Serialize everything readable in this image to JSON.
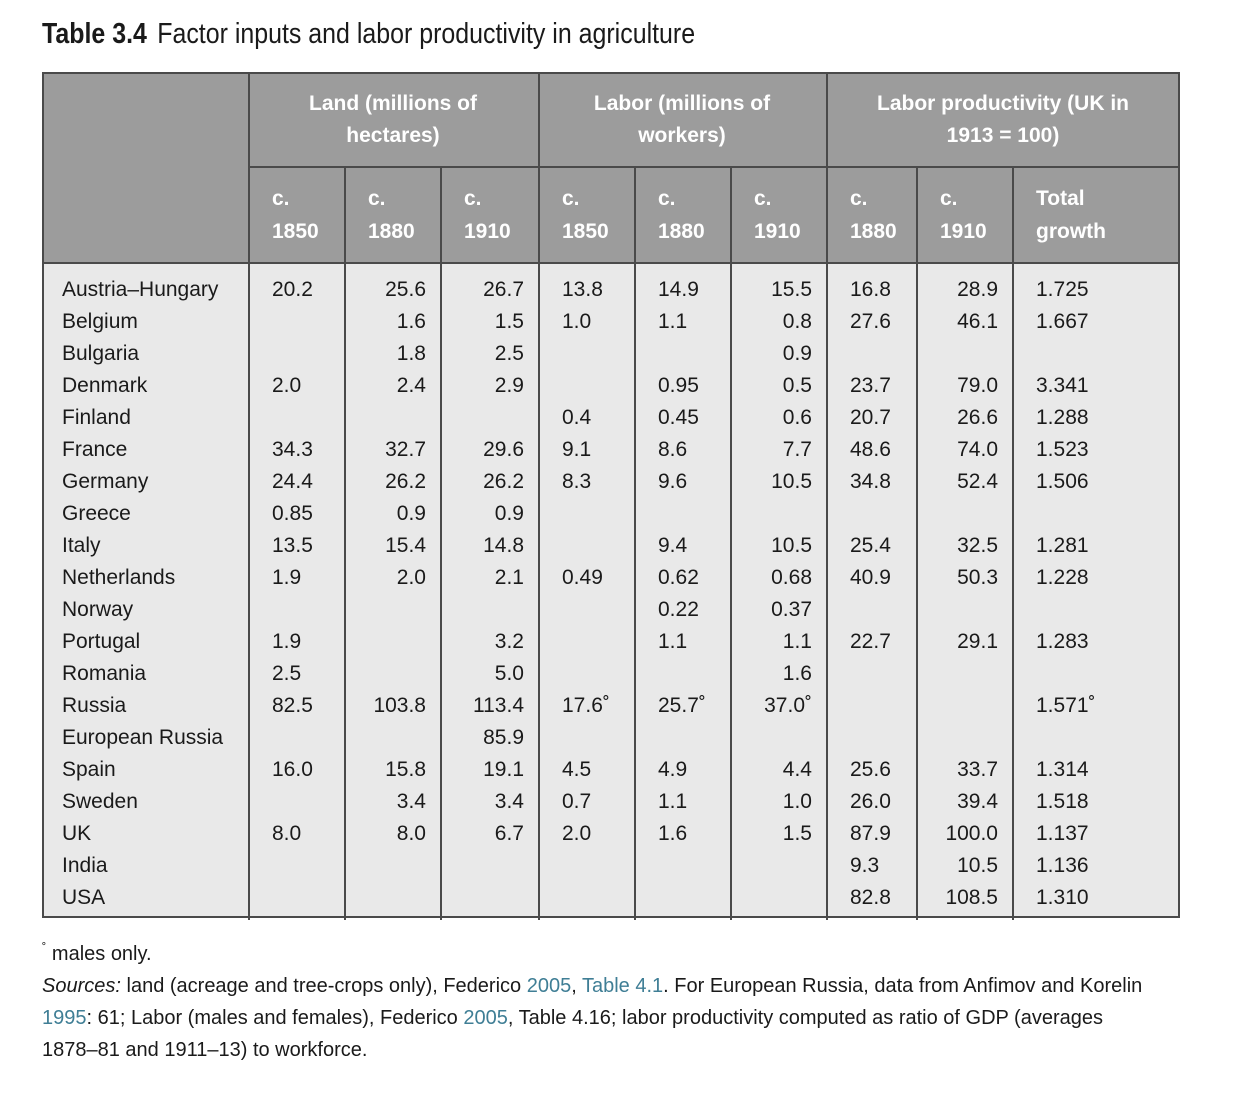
{
  "title": {
    "number": "Table 3.4",
    "text": "Factor inputs and labor productivity in agriculture"
  },
  "groups": [
    {
      "line1": "Land (millions of",
      "line2": "hectares)"
    },
    {
      "line1": "Labor (millions of",
      "line2": "workers)"
    },
    {
      "line1": "Labor productivity (UK in",
      "line2": "1913 = 100)"
    }
  ],
  "subheaders": [
    {
      "line1": "c.",
      "line2": "1850"
    },
    {
      "line1": "c.",
      "line2": "1880"
    },
    {
      "line1": "c.",
      "line2": "1910"
    },
    {
      "line1": "c.",
      "line2": "1850"
    },
    {
      "line1": "c.",
      "line2": "1880"
    },
    {
      "line1": "c.",
      "line2": "1910"
    },
    {
      "line1": "c.",
      "line2": "1880"
    },
    {
      "line1": "c.",
      "line2": "1910"
    },
    {
      "line1": "Total",
      "line2": "growth"
    }
  ],
  "rows": [
    {
      "country": "Austria–Hungary",
      "values": [
        "20.2",
        "25.6",
        "26.7",
        "13.8",
        "14.9",
        "15.5",
        "16.8",
        "28.9",
        "1.725"
      ]
    },
    {
      "country": "Belgium",
      "values": [
        "",
        "1.6",
        "1.5",
        "1.0",
        "1.1",
        "0.8",
        "27.6",
        "46.1",
        "1.667"
      ]
    },
    {
      "country": "Bulgaria",
      "values": [
        "",
        "1.8",
        "2.5",
        "",
        "",
        "0.9",
        "",
        "",
        ""
      ]
    },
    {
      "country": "Denmark",
      "values": [
        "2.0",
        "2.4",
        "2.9",
        "",
        "0.95",
        "0.5",
        "23.7",
        "79.0",
        "3.341"
      ]
    },
    {
      "country": "Finland",
      "values": [
        "",
        "",
        "",
        "0.4",
        "0.45",
        "0.6",
        "20.7",
        "26.6",
        "1.288"
      ]
    },
    {
      "country": "France",
      "values": [
        "34.3",
        "32.7",
        "29.6",
        "9.1",
        "8.6",
        "7.7",
        "48.6",
        "74.0",
        "1.523"
      ]
    },
    {
      "country": "Germany",
      "values": [
        "24.4",
        "26.2",
        "26.2",
        "8.3",
        "9.6",
        "10.5",
        "34.8",
        "52.4",
        "1.506"
      ]
    },
    {
      "country": "Greece",
      "values": [
        "0.85",
        "0.9",
        "0.9",
        "",
        "",
        "",
        "",
        "",
        ""
      ]
    },
    {
      "country": "Italy",
      "values": [
        "13.5",
        "15.4",
        "14.8",
        "",
        "9.4",
        "10.5",
        "25.4",
        "32.5",
        "1.281"
      ]
    },
    {
      "country": "Netherlands",
      "values": [
        "1.9",
        "2.0",
        "2.1",
        "0.49",
        "0.62",
        "0.68",
        "40.9",
        "50.3",
        "1.228"
      ]
    },
    {
      "country": "Norway",
      "values": [
        "",
        "",
        "",
        "",
        "0.22",
        "0.37",
        "",
        "",
        ""
      ]
    },
    {
      "country": "Portugal",
      "values": [
        "1.9",
        "",
        "3.2",
        "",
        "1.1",
        "1.1",
        "22.7",
        "29.1",
        "1.283"
      ]
    },
    {
      "country": "Romania",
      "values": [
        "2.5",
        "",
        "5.0",
        "",
        "",
        "1.6",
        "",
        "",
        ""
      ]
    },
    {
      "country": "Russia",
      "values": [
        "82.5",
        "103.8",
        "113.4",
        "17.6˚",
        "25.7˚",
        "37.0˚",
        "",
        "",
        "1.571˚"
      ]
    },
    {
      "country": "European Russia",
      "values": [
        "",
        "",
        "85.9",
        "",
        "",
        "",
        "",
        "",
        ""
      ]
    },
    {
      "country": "Spain",
      "values": [
        "16.0",
        "15.8",
        "19.1",
        "4.5",
        "4.9",
        "4.4",
        "25.6",
        "33.7",
        "1.314"
      ]
    },
    {
      "country": "Sweden",
      "values": [
        "",
        "3.4",
        "3.4",
        "0.7",
        "1.1",
        "1.0",
        "26.0",
        "39.4",
        "1.518"
      ]
    },
    {
      "country": "UK",
      "values": [
        "8.0",
        "8.0",
        "6.7",
        "2.0",
        "1.6",
        "1.5",
        "87.9",
        "100.0",
        "1.137"
      ]
    },
    {
      "country": "India",
      "values": [
        "",
        "",
        "",
        "",
        "",
        "",
        "9.3",
        "10.5",
        "1.136"
      ]
    },
    {
      "country": "USA",
      "values": [
        "",
        "",
        "",
        "",
        "",
        "",
        "82.8",
        "108.5",
        "1.310"
      ]
    }
  ],
  "footnote": {
    "marker": "˚",
    "males_only": "males only.",
    "sources_label": "Sources:",
    "sources_a": "land (acreage and tree-crops only), Federico",
    "link_2005a": "2005",
    "comma": ",",
    "link_table41": "Table 4.1",
    "sources_b": ". For European Russia, data from Anfimov and Korelin",
    "link_1995": "1995",
    "sources_c": ": 61; Labor (males and females), Federico",
    "link_2005b": "2005",
    "sources_d": ", Table 4.16; labor productivity computed as ratio of GDP (averages 1878–81 and 1911–13) to workforce."
  }
}
